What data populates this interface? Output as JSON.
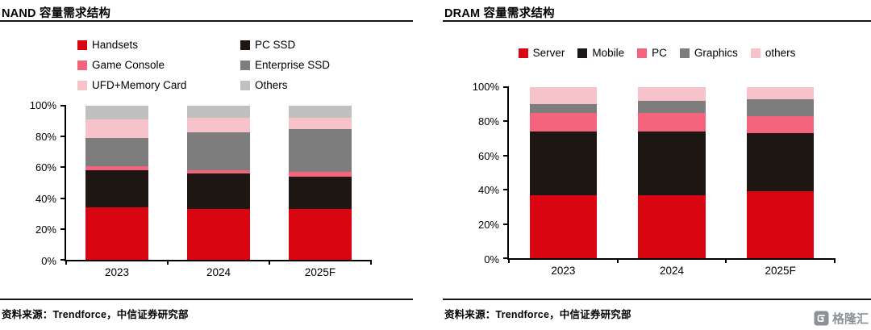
{
  "chart_data": [
    {
      "id": "nand",
      "type": "bar",
      "stacked": true,
      "title": "NAND 容量需求结构",
      "source": "资料来源：Trendforce，中信证券研究部",
      "unit": "%",
      "ylim": [
        0,
        100
      ],
      "yticks": [
        0,
        20,
        40,
        60,
        80,
        100
      ],
      "grid": false,
      "legend_position": "top",
      "categories": [
        "2023",
        "2024",
        "2025F"
      ],
      "series": [
        {
          "name": "Handsets",
          "color": "#d90511",
          "values": [
            34,
            33,
            33
          ]
        },
        {
          "name": "PC SSD",
          "color": "#1e1613",
          "values": [
            24,
            23,
            21
          ]
        },
        {
          "name": "Game Console",
          "color": "#f4647c",
          "values": [
            3,
            2,
            3
          ]
        },
        {
          "name": "Enterprise SSD",
          "color": "#7d7d7d",
          "values": [
            18,
            25,
            28
          ]
        },
        {
          "name": "UFD+Memory Card",
          "color": "#f6c3ca",
          "values": [
            12,
            9,
            7
          ]
        },
        {
          "name": "Others",
          "color": "#c0c0c0",
          "values": [
            9,
            8,
            8
          ]
        }
      ]
    },
    {
      "id": "dram",
      "type": "bar",
      "stacked": true,
      "title": "DRAM 容量需求结构",
      "source": "资料来源：Trendforce，中信证券研究部",
      "unit": "%",
      "ylim": [
        0,
        100
      ],
      "yticks": [
        0,
        20,
        40,
        60,
        80,
        100
      ],
      "grid": false,
      "legend_position": "top",
      "categories": [
        "2023",
        "2024",
        "2025F"
      ],
      "series": [
        {
          "name": "Server",
          "color": "#d90511",
          "values": [
            37,
            37,
            39
          ]
        },
        {
          "name": "Mobile",
          "color": "#1e1613",
          "values": [
            37,
            37,
            34
          ]
        },
        {
          "name": "PC",
          "color": "#f4647c",
          "values": [
            11,
            11,
            10
          ]
        },
        {
          "name": "Graphics",
          "color": "#7d7d7d",
          "values": [
            5,
            7,
            10
          ]
        },
        {
          "name": "others",
          "color": "#f6c3ca",
          "values": [
            10,
            8,
            7
          ]
        }
      ]
    }
  ],
  "watermark": {
    "label": "格隆汇"
  }
}
